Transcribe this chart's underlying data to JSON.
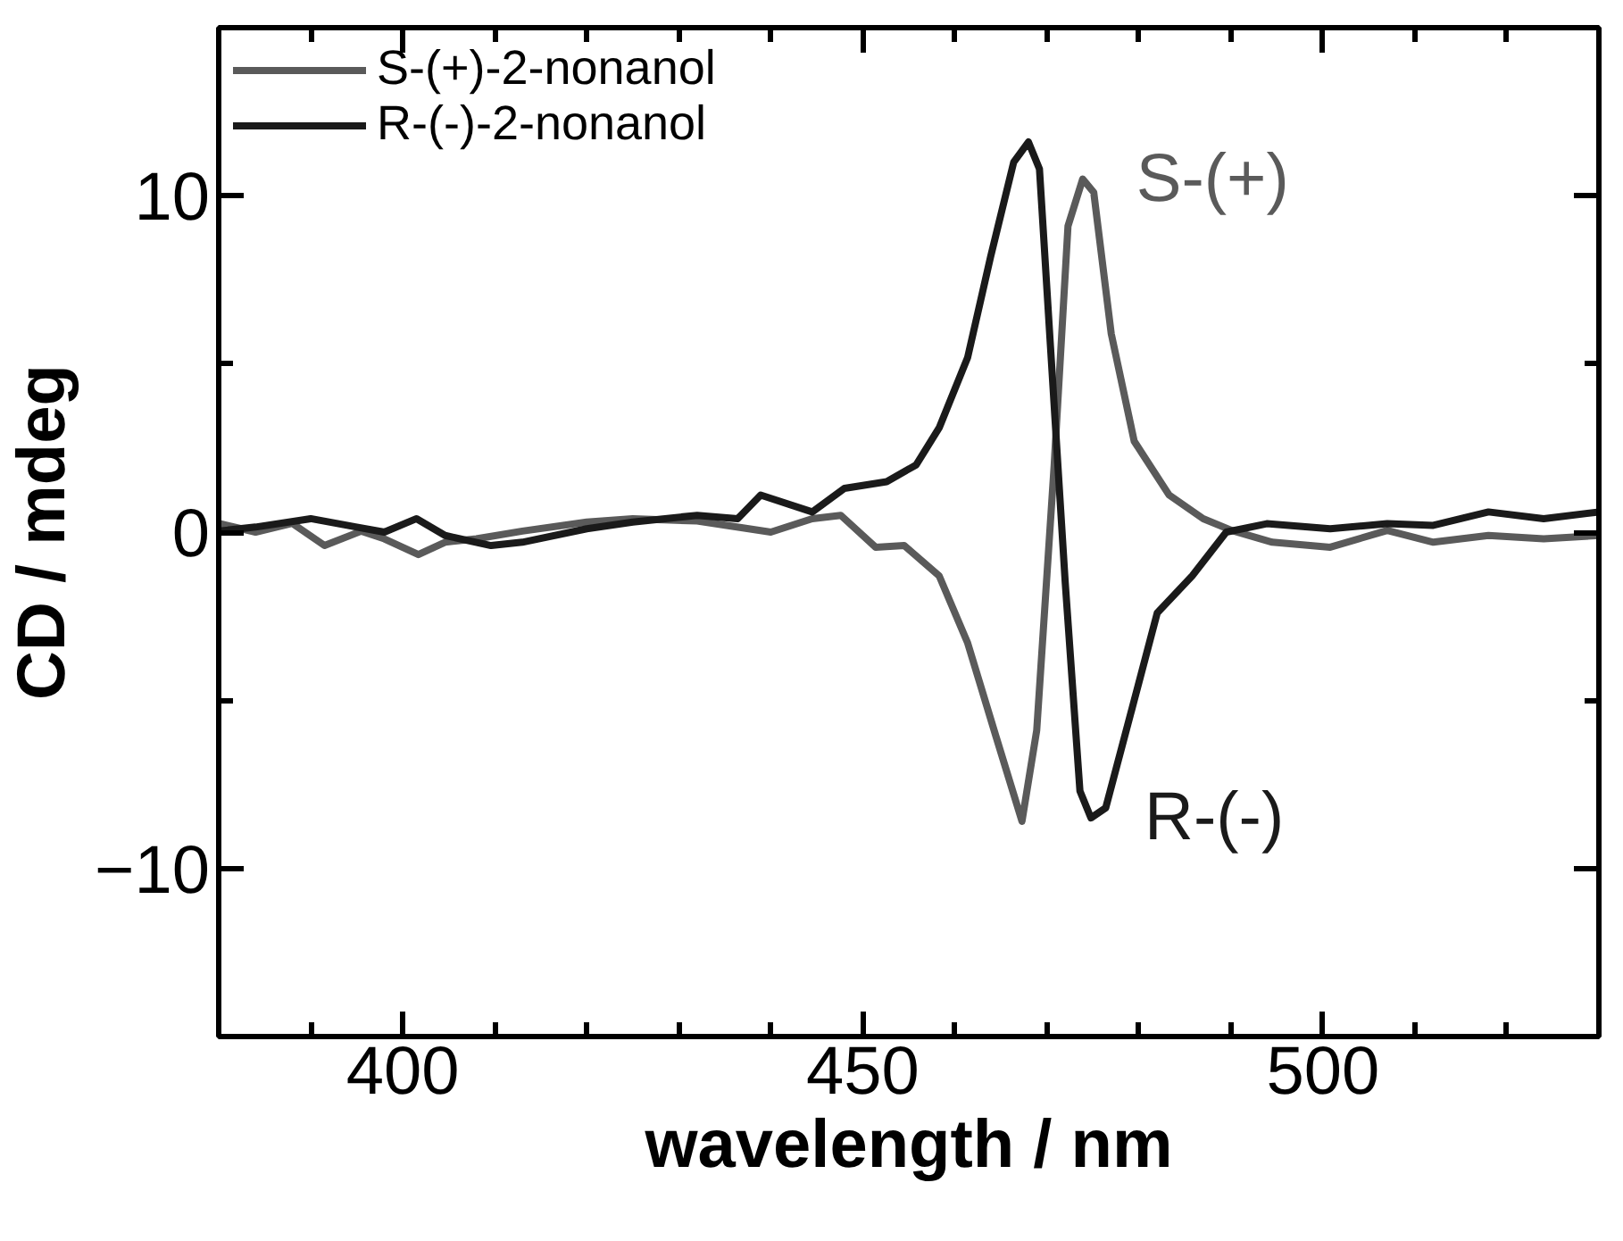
{
  "chart_data": {
    "type": "line",
    "xlabel": "wavelength / nm",
    "ylabel": "CD / mdeg",
    "xlim": [
      380,
      530
    ],
    "ylim": [
      -15,
      15
    ],
    "xticks": [
      400,
      450,
      500
    ],
    "yticks": [
      -10,
      0,
      10
    ],
    "grid": false,
    "legend": "top left",
    "marker": "none",
    "line_style": "solid",
    "annotations": [
      "S-(+)",
      "R-(-)"
    ],
    "series": [
      {
        "name": "S-(+)-2-nonanol",
        "color": "#5a5a5a",
        "x": [
          380,
          384,
          388,
          391.5,
          395.5,
          398,
          401.7,
          404.6,
          408,
          413,
          420,
          425,
          432,
          440,
          444.5,
          447.6,
          451.4,
          454.5,
          458.3,
          461.4,
          464.5,
          467.3,
          468.9,
          470.8,
          472.3,
          473.9,
          475.1,
          477,
          479.5,
          483.3,
          487,
          490.1,
          494.5,
          500.8,
          507,
          512,
          518,
          524,
          530
        ],
        "values": [
          0.26,
          0,
          0.26,
          -0.4,
          0.03,
          -0.2,
          -0.67,
          -0.3,
          -0.2,
          0.03,
          0.3,
          0.4,
          0.33,
          0,
          0.4,
          0.5,
          -0.45,
          -0.4,
          -1.3,
          -3.3,
          -6.1,
          -8.6,
          -5.9,
          2.0,
          9.1,
          10.5,
          10.1,
          5.9,
          2.7,
          1.1,
          0.4,
          0.05,
          -0.3,
          -0.45,
          0.05,
          -0.3,
          -0.1,
          -0.2,
          -0.1
        ]
      },
      {
        "name": "R-(-)-2-nonanol",
        "color": "#1a1a1a",
        "x": [
          380,
          384,
          390,
          395,
          398,
          401.5,
          404.6,
          409.6,
          413,
          420,
          425,
          432,
          436.4,
          438.9,
          444.5,
          448,
          452.6,
          455.8,
          458.3,
          461.4,
          463.9,
          466.4,
          468,
          469.2,
          470.4,
          472,
          473.6,
          474.8,
          476.4,
          479.5,
          482,
          485.8,
          489.5,
          493.9,
          500.8,
          507,
          512,
          518,
          524,
          530
        ],
        "values": [
          0.03,
          0.15,
          0.4,
          0.15,
          0,
          0.4,
          -0.1,
          -0.4,
          -0.3,
          0.1,
          0.3,
          0.5,
          0.4,
          1.1,
          0.6,
          1.3,
          1.5,
          2.0,
          3.1,
          5.2,
          8.2,
          11.0,
          11.6,
          10.8,
          5.5,
          -1.5,
          -7.7,
          -8.5,
          -8.2,
          -5.0,
          -2.4,
          -1.3,
          0.0,
          0.25,
          0.1,
          0.25,
          0.2,
          0.6,
          0.4,
          0.6
        ]
      }
    ]
  }
}
